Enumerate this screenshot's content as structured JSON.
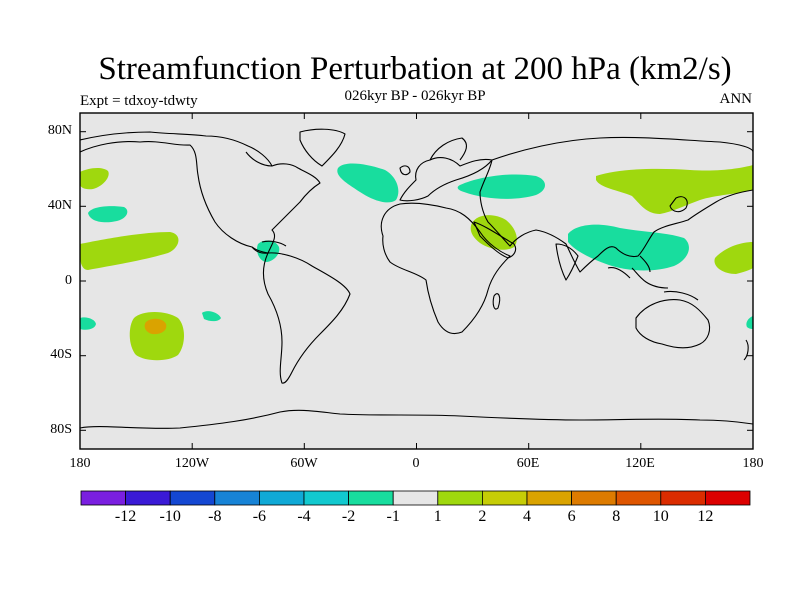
{
  "header": {
    "title": "Streamfunction Perturbation at 200 hPa (km2/s)",
    "subtitle": "026kyr BP - 026kyr BP",
    "left_label": "Expt = tdxoy-tdwty",
    "right_label": "ANN"
  },
  "map": {
    "projection": "cylindrical equidistant",
    "lon_range": [
      -180,
      180
    ],
    "lat_range": [
      -90,
      90
    ],
    "background_color": "#e6e6e6",
    "x_ticks": [
      "180",
      "120W",
      "60W",
      "0",
      "60E",
      "120E",
      "180"
    ],
    "y_ticks": [
      "80N",
      "40N",
      "0",
      "40S",
      "80S"
    ]
  },
  "colorbar": {
    "colors": [
      "#7a1fe0",
      "#3a1ad6",
      "#1447d2",
      "#1783d6",
      "#10a9d6",
      "#12c9cf",
      "#18dd9e",
      "#e6e6e6",
      "#9fd80e",
      "#c6cd06",
      "#daa300",
      "#dd7b00",
      "#de5500",
      "#db2c00",
      "#dc0000"
    ],
    "labels": [
      "-12",
      "-10",
      "-8",
      "-6",
      "-4",
      "-2",
      "-1",
      "1",
      "2",
      "4",
      "6",
      "8",
      "10",
      "12"
    ]
  },
  "regions": [
    {
      "name": "north-pacific-east",
      "level": "2",
      "color": "#9fd80e",
      "lon": -170,
      "lat": 56
    },
    {
      "name": "north-pacific-mid",
      "level": "-2",
      "color": "#18dd9e",
      "lon": -163,
      "lat": 35
    },
    {
      "name": "subtropical-pacific",
      "level": "2",
      "color": "#9fd80e",
      "lon": -143,
      "lat": 14
    },
    {
      "name": "caribbean",
      "level": "-2",
      "color": "#18dd9e",
      "lon": -87,
      "lat": 15
    },
    {
      "name": "south-pacific-west",
      "level": "-2",
      "color": "#18dd9e",
      "lon": -176,
      "lat": -23
    },
    {
      "name": "south-pacific",
      "level": "2",
      "color": "#9fd80e",
      "lon": -145,
      "lat": -30
    },
    {
      "name": "south-pacific-core",
      "level": "4",
      "color": "#daa300",
      "lon": -146,
      "lat": -24
    },
    {
      "name": "south-pacific-small",
      "level": "-2",
      "color": "#18dd9e",
      "lon": -120,
      "lat": -18
    },
    {
      "name": "north-atlantic",
      "level": "-2",
      "color": "#18dd9e",
      "lon": -19,
      "lat": 54
    },
    {
      "name": "central-asia",
      "level": "-2",
      "color": "#18dd9e",
      "lon": 52,
      "lat": 52
    },
    {
      "name": "middle-east",
      "level": "2",
      "color": "#9fd80e",
      "lon": 43,
      "lat": 28
    },
    {
      "name": "south-asia",
      "level": "-2",
      "color": "#18dd9e",
      "lon": 113,
      "lat": 22
    },
    {
      "name": "east-asia",
      "level": "2",
      "color": "#9fd80e",
      "lon": 140,
      "lat": 53
    },
    {
      "name": "west-pacific-tropics",
      "level": "2",
      "color": "#9fd80e",
      "lon": 175,
      "lat": 12
    },
    {
      "name": "south-pacific-east",
      "level": "-2",
      "color": "#18dd9e",
      "lon": 178,
      "lat": -23
    }
  ]
}
